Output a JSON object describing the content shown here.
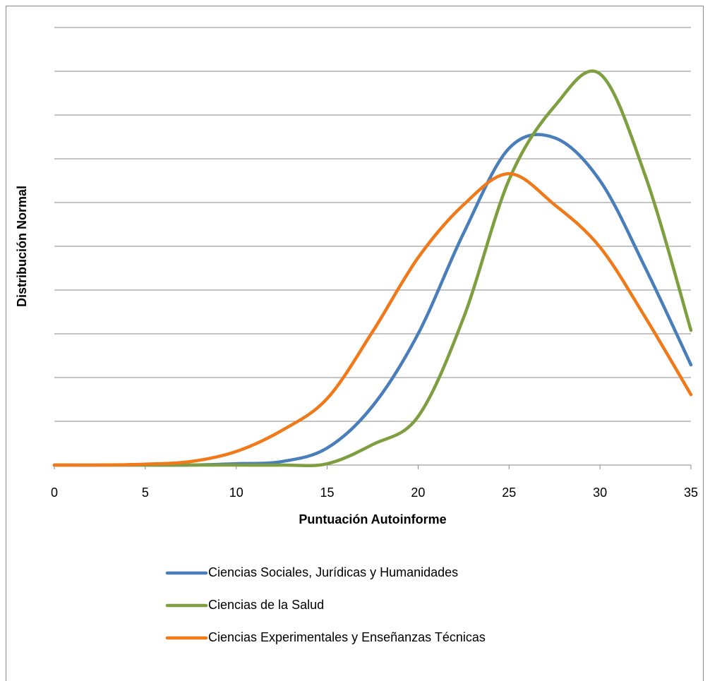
{
  "chart_data": {
    "type": "line",
    "xlabel": "Puntuación Autoinforme",
    "ylabel": "Distribución Normal",
    "x": [
      0,
      2.5,
      5,
      7.5,
      10,
      12.5,
      15,
      17.5,
      20,
      22.5,
      25,
      27.5,
      30,
      32.5,
      35
    ],
    "series": [
      {
        "name": "Ciencias Sociales,  Jurídicas y Humanidades",
        "color": "#4a7ebb",
        "values": [
          0,
          0,
          0,
          0,
          0.03,
          0.08,
          0.39,
          1.35,
          3.0,
          5.3,
          7.24,
          7.48,
          6.5,
          4.5,
          2.29
        ]
      },
      {
        "name": "Ciencias de la Salud",
        "color": "#7e9f3f",
        "values": [
          0,
          0,
          0,
          0,
          0,
          0,
          0.03,
          0.47,
          1.11,
          3.37,
          6.52,
          8.2,
          8.94,
          6.6,
          3.08
        ]
      },
      {
        "name": "Ciencias Experimentales y Enseñanzas Técnicas",
        "color": "#f07a1a",
        "values": [
          0,
          0,
          0.02,
          0.08,
          0.31,
          0.79,
          1.52,
          3.05,
          4.74,
          5.95,
          6.66,
          5.95,
          4.98,
          3.37,
          1.61
        ]
      }
    ],
    "xlim": [
      0,
      35
    ],
    "xticks": [
      0,
      5,
      10,
      15,
      20,
      25,
      30,
      35
    ],
    "ylim": [
      0,
      10
    ],
    "ygrid": [
      1,
      2,
      3,
      4,
      5,
      6,
      7,
      8,
      9,
      10
    ],
    "grid": true,
    "legend": "bottom"
  }
}
